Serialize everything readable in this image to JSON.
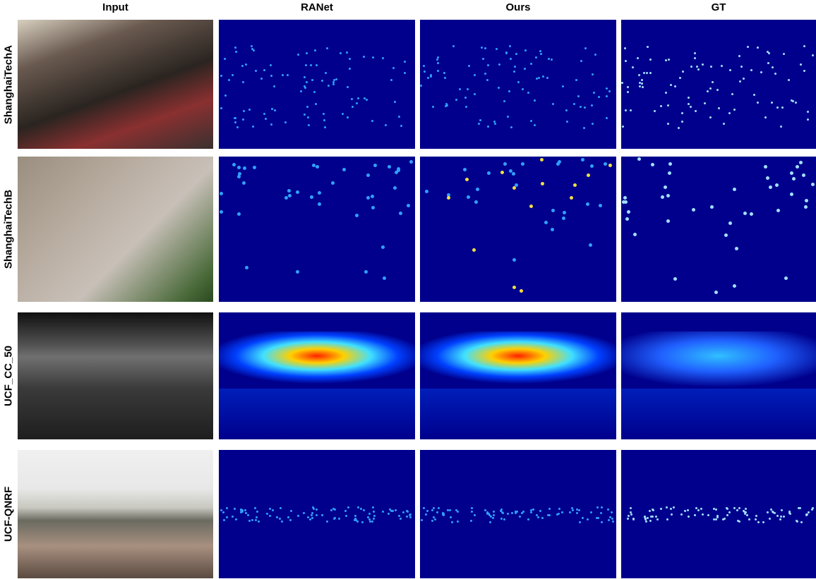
{
  "columns": [
    "Input",
    "RANet",
    "Ours",
    "GT"
  ],
  "rows": [
    "ShanghaiTechA",
    "ShanghaiTechB",
    "UCF_CC_50",
    "UCF-QNRF"
  ]
}
